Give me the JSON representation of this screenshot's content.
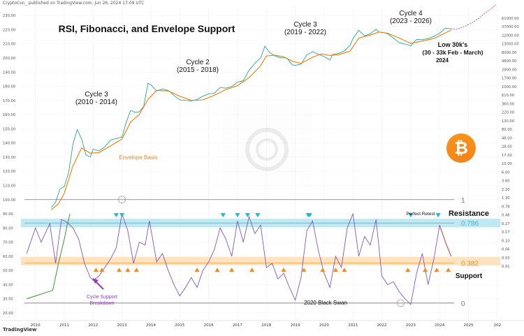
{
  "header": {
    "publisher": "CryptoCon_ published on TradingView.com, Jun 26, 2024 17:09 UTC"
  },
  "footer": {
    "brand": "TradingView"
  },
  "chart_data": {
    "type": "line",
    "title": "RSI, Fibonacci, and Envelope Support",
    "x_axis": {
      "ticks": [
        "2010",
        "2011",
        "2012",
        "2013",
        "2014",
        "2015",
        "2016",
        "2017",
        "2018",
        "2019",
        "2020",
        "2021",
        "2022",
        "2023",
        "2024",
        "2025",
        "202"
      ],
      "range": [
        2009.5,
        2026.1
      ]
    },
    "left_axis": {
      "ticks": [
        "230.00",
        "220.00",
        "210.00",
        "200.00",
        "190.00",
        "180.00",
        "170.00",
        "160.00",
        "150.00",
        "140.00",
        "130.00",
        "120.00",
        "110.00",
        "100.00",
        "90.00",
        "80.00",
        "70.00",
        "60.00",
        "50.00",
        "40.00",
        "30.00",
        "20.00"
      ]
    },
    "right_axis": {
      "ticks": [
        "61000.00",
        "37000.00",
        "22000.00",
        "13000.00",
        "8000.00",
        "4800.00",
        "2900.00",
        "1700.00",
        "1000.00",
        "610.00",
        "360.00",
        "220.00",
        "130.00",
        "80.00",
        "48.00",
        "28.00",
        "17.00",
        "10.00",
        "6.00",
        "3.60",
        "2.20",
        "1.30",
        "0.78",
        "0.46",
        "0.27",
        "0.17",
        "0.10",
        "0.06",
        "0.03",
        "0.01"
      ]
    },
    "series": [
      {
        "name": "BTC price (log)",
        "color": "#26a69a",
        "x": [
          2010.55,
          2010.7,
          2010.85,
          2011.0,
          2011.15,
          2011.3,
          2011.45,
          2011.6,
          2011.75,
          2011.9,
          2012.0,
          2012.2,
          2012.4,
          2012.6,
          2012.8,
          2013.0,
          2013.15,
          2013.3,
          2013.45,
          2013.6,
          2013.75,
          2013.9,
          2014.0,
          2014.2,
          2014.4,
          2014.6,
          2014.8,
          2015.0,
          2015.2,
          2015.4,
          2015.6,
          2015.8,
          2016.0,
          2016.2,
          2016.4,
          2016.6,
          2016.8,
          2017.0,
          2017.2,
          2017.4,
          2017.6,
          2017.8,
          2017.95,
          2018.1,
          2018.3,
          2018.5,
          2018.7,
          2018.9,
          2019.0,
          2019.2,
          2019.4,
          2019.6,
          2019.8,
          2020.0,
          2020.2,
          2020.3,
          2020.5,
          2020.7,
          2020.9,
          2021.0,
          2021.2,
          2021.4,
          2021.6,
          2021.8,
          2021.9,
          2022.0,
          2022.2,
          2022.4,
          2022.6,
          2022.8,
          2023.0,
          2023.2,
          2023.4,
          2023.6,
          2023.8,
          2024.0,
          2024.2,
          2024.4
        ],
        "y": [
          0.06,
          0.09,
          0.25,
          0.3,
          0.9,
          8.0,
          25.0,
          12.0,
          3.5,
          3.0,
          5.5,
          4.8,
          6.5,
          11.0,
          12.5,
          14.0,
          45.0,
          110.0,
          95.0,
          100.0,
          150.0,
          900.0,
          800.0,
          500.0,
          580.0,
          520.0,
          350.0,
          250.0,
          240.0,
          230.0,
          260.0,
          330.0,
          400.0,
          420.0,
          650.0,
          620.0,
          700.0,
          1000.0,
          1100.0,
          2500.0,
          4200.0,
          6500.0,
          16000.0,
          10000.0,
          7500.0,
          6500.0,
          6500.0,
          3800.0,
          3600.0,
          4000.0,
          8000.0,
          10500.0,
          8500.0,
          7200.0,
          5500.0,
          8500.0,
          9200.0,
          11000.0,
          17000.0,
          29000.0,
          55000.0,
          36000.0,
          42000.0,
          60000.0,
          48000.0,
          47000.0,
          42000.0,
          30000.0,
          21000.0,
          19000.0,
          16500.0,
          27000.0,
          26500.0,
          29000.0,
          34000.0,
          44000.0,
          65000.0,
          61000.0
        ]
      },
      {
        "name": "Envelope basis",
        "color": "#f57c00",
        "x": [
          2010.55,
          2010.8,
          2011.0,
          2011.3,
          2011.6,
          2011.9,
          2012.2,
          2012.6,
          2013.0,
          2013.3,
          2013.6,
          2013.9,
          2014.2,
          2014.6,
          2015.0,
          2015.4,
          2015.8,
          2016.2,
          2016.6,
          2017.0,
          2017.4,
          2017.8,
          2018.0,
          2018.3,
          2018.6,
          2018.9,
          2019.2,
          2019.6,
          2019.9,
          2020.2,
          2020.5,
          2020.9,
          2021.2,
          2021.6,
          2021.9,
          2022.2,
          2022.6,
          2023.0,
          2023.4,
          2023.8,
          2024.2,
          2024.4
        ],
        "y": [
          0.05,
          0.08,
          0.18,
          1.5,
          6.0,
          4.0,
          4.2,
          7.0,
          12.0,
          45.0,
          80.0,
          260.0,
          520.0,
          500.0,
          330.0,
          240.0,
          250.0,
          360.0,
          560.0,
          750.0,
          1400.0,
          3500.0,
          7500.0,
          8000.0,
          7000.0,
          5000.0,
          4200.0,
          6800.0,
          8800.0,
          7800.0,
          8300.0,
          11000.0,
          30000.0,
          38000.0,
          48000.0,
          44000.0,
          30000.0,
          20000.0,
          24000.0,
          29000.0,
          45000.0,
          55000.0
        ]
      },
      {
        "name": "Projection",
        "color": "#c46a8c",
        "dashed": true,
        "x": [
          2024.4,
          2024.6,
          2024.8,
          2025.0,
          2025.2,
          2025.4,
          2025.6,
          2025.8,
          2025.95
        ],
        "y": [
          61000.0,
          60000.0,
          70000.0,
          85000.0,
          110000.0,
          150000.0,
          220000.0,
          300000.0,
          400000.0
        ]
      },
      {
        "name": "RSI",
        "color": "#7e57c2",
        "x": [
          2009.7,
          2010.0,
          2010.2,
          2010.5,
          2010.7,
          2010.9,
          2011.1,
          2011.3,
          2011.5,
          2011.7,
          2011.9,
          2012.0,
          2012.2,
          2012.4,
          2012.6,
          2012.8,
          2013.0,
          2013.2,
          2013.4,
          2013.6,
          2013.8,
          2013.95,
          2014.2,
          2014.4,
          2014.6,
          2014.8,
          2015.0,
          2015.2,
          2015.4,
          2015.6,
          2015.8,
          2016.0,
          2016.2,
          2016.4,
          2016.6,
          2016.8,
          2017.0,
          2017.2,
          2017.4,
          2017.6,
          2017.8,
          2018.0,
          2018.2,
          2018.4,
          2018.6,
          2018.8,
          2019.0,
          2019.2,
          2019.4,
          2019.6,
          2019.8,
          2020.0,
          2020.2,
          2020.4,
          2020.6,
          2020.8,
          2021.0,
          2021.2,
          2021.4,
          2021.6,
          2021.8,
          2022.0,
          2022.2,
          2022.4,
          2022.6,
          2022.8,
          2023.0,
          2023.2,
          2023.4,
          2023.6,
          2023.8,
          2024.0,
          2024.2,
          2024.4
        ],
        "y": [
          62,
          80,
          70,
          83,
          55,
          86,
          84,
          80,
          72,
          55,
          45,
          43,
          46,
          52,
          58,
          66,
          90,
          78,
          55,
          70,
          68,
          85,
          56,
          62,
          50,
          40,
          32,
          38,
          45,
          38,
          50,
          56,
          65,
          80,
          72,
          60,
          85,
          70,
          88,
          76,
          82,
          52,
          55,
          44,
          48,
          38,
          29,
          45,
          78,
          85,
          64,
          48,
          38,
          60,
          52,
          80,
          90,
          60,
          74,
          68,
          86,
          46,
          40,
          42,
          35,
          30,
          26,
          48,
          62,
          40,
          58,
          82,
          70,
          60
        ]
      },
      {
        "name": "Volume/MA",
        "color": "#43a047",
        "x": [
          2009.7,
          2010.0,
          2010.3,
          2010.6,
          2010.8,
          2011.0,
          2011.1,
          2011.2
        ],
        "y": [
          30,
          32,
          34,
          36,
          55,
          72,
          82,
          90
        ]
      }
    ],
    "levels": [
      {
        "name": "fib-1",
        "value": 100,
        "label": "1"
      },
      {
        "name": "fib-0.786",
        "value": 83.5,
        "label": "0.786"
      },
      {
        "name": "fib-0.382",
        "value": 55.2,
        "label": "0.382"
      },
      {
        "name": "fib-0",
        "value": 27,
        "label": "0"
      }
    ],
    "bands": [
      {
        "name": "resistance-band",
        "y0": 80.5,
        "y1": 86.5,
        "color": "#bfe9f2"
      },
      {
        "name": "support-band",
        "y0": 53.5,
        "y1": 59.5,
        "color": "#fde3bf"
      }
    ],
    "annotations": {
      "cycles": [
        {
          "title": "Cycle 3",
          "years": "(2010 - 2014)"
        },
        {
          "title": "Cycle 2",
          "years": "(2015 - 2018)"
        },
        {
          "title": "Cycle 3",
          "years": "(2019 - 2022)"
        },
        {
          "title": "Cycle 4",
          "years": "(2023 - 2026)"
        }
      ],
      "low_title": "Low 30k's",
      "low_range": "(30 - 33k Feb - March)",
      "low_year": "2024",
      "envelope_basis": "Envelope Basis",
      "perfect_retest": "Perfect Retest",
      "resistance": "Resistance",
      "support": "Support",
      "breakdown_1": "Cycle Support",
      "breakdown_2": "Breakdown",
      "black_swan": "2020 Black Swan"
    },
    "markers": {
      "down_arrows_x": [
        2012.8,
        2013.0,
        2016.5,
        2017.0,
        2017.35,
        2017.7,
        2019.45,
        2019.5,
        2023.0,
        2023.95
      ],
      "up_arrows_x": [
        2012.1,
        2012.3,
        2012.9,
        2013.2,
        2013.5,
        2015.6,
        2016.3,
        2016.8,
        2017.5,
        2018.6,
        2019.3,
        2019.95,
        2020.4,
        2020.7,
        2022.9,
        2023.5,
        2023.9,
        2024.3
      ]
    }
  }
}
